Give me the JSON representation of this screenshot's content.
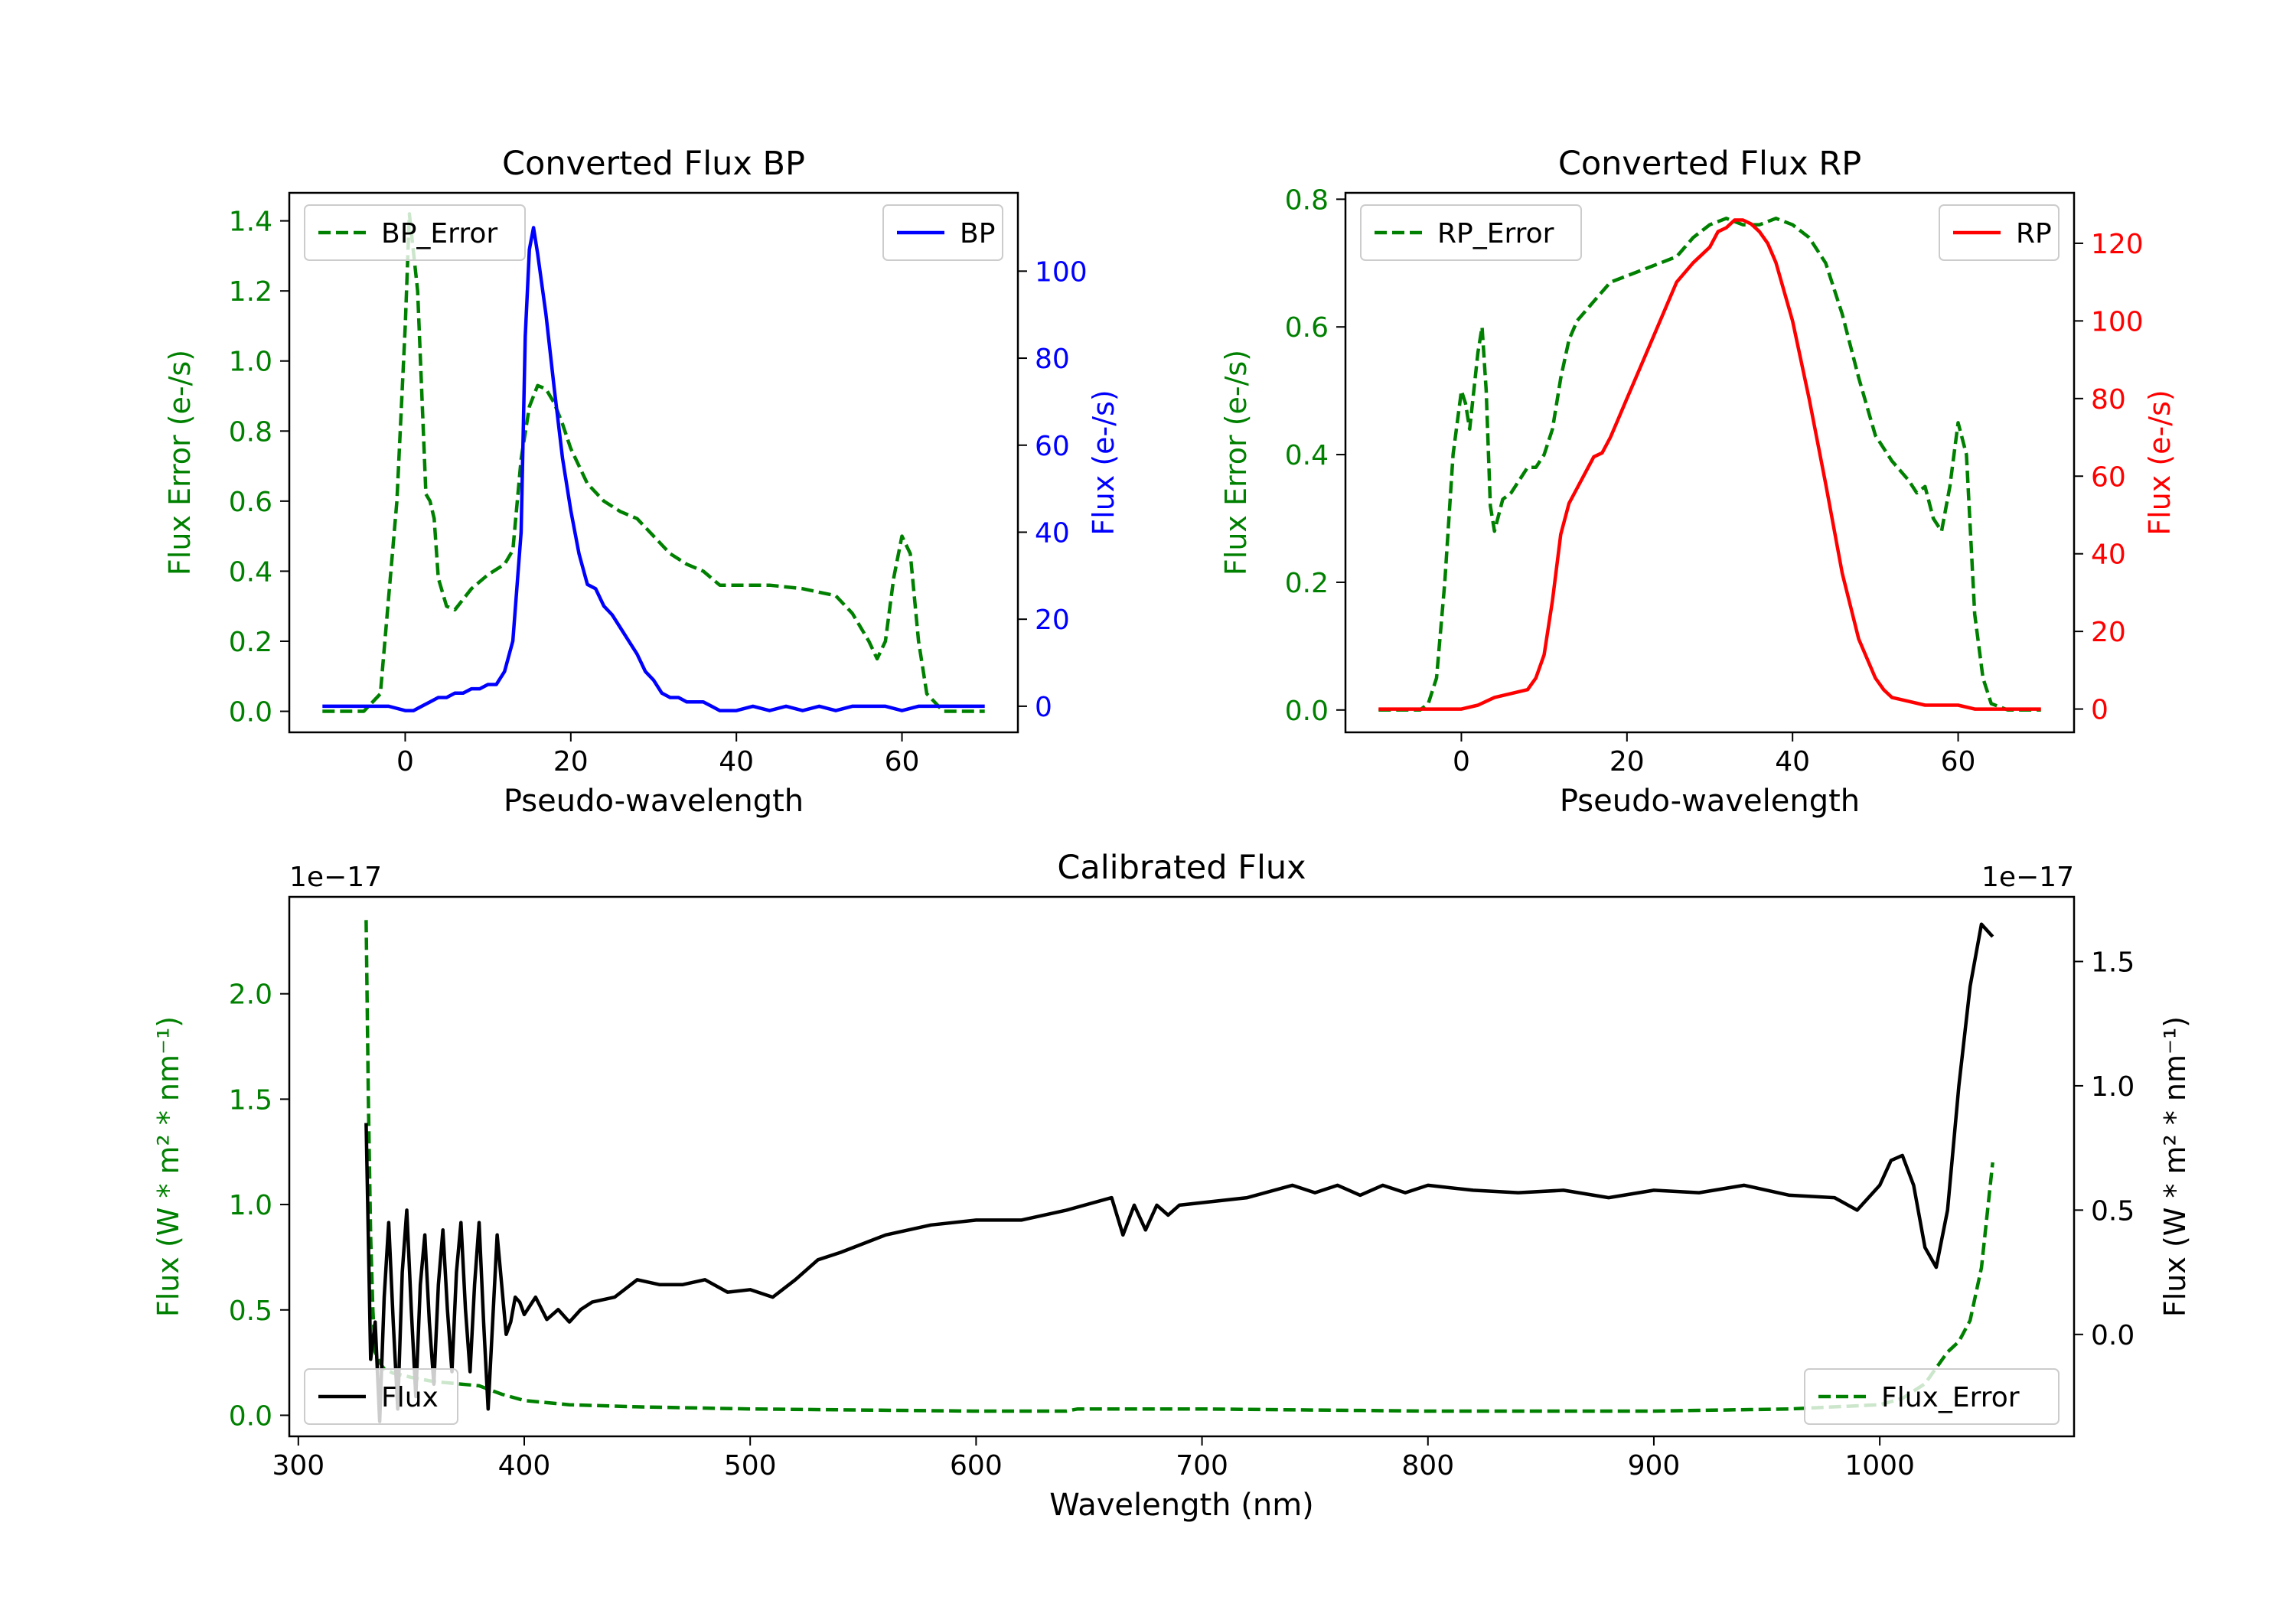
{
  "colors": {
    "green": "#008000",
    "blue": "#0000ff",
    "red": "#ff0000",
    "black": "#000000"
  },
  "chart_data": [
    {
      "id": "bp",
      "type": "line",
      "title": "Converted Flux BP",
      "xlabel": "Pseudo-wavelength",
      "ylabel_left": "Flux Error (e-/s)",
      "ylabel_right": "Flux (e-/s)",
      "xlim": [
        -14,
        74
      ],
      "ylim_left": [
        -0.06,
        1.48
      ],
      "ylim_right": [
        -6,
        118
      ],
      "xticks": [
        "0",
        "20",
        "40",
        "60"
      ],
      "yticks_left": [
        "0.0",
        "0.2",
        "0.4",
        "0.6",
        "0.8",
        "1.0",
        "1.2",
        "1.4"
      ],
      "yticks_right": [
        "0",
        "20",
        "40",
        "60",
        "80",
        "100"
      ],
      "legend_left": "BP_Error",
      "legend_right": "BP",
      "series": [
        {
          "name": "BP_Error",
          "axis": "left",
          "style": "dashed",
          "color": "#008000",
          "x": [
            -10,
            -5,
            -3,
            -1,
            0,
            0.5,
            1.5,
            2.5,
            3,
            3.5,
            4,
            5,
            6,
            8,
            10,
            12,
            13,
            14,
            15,
            16,
            17,
            18,
            19,
            20,
            22,
            24,
            26,
            28,
            30,
            32,
            34,
            36,
            38,
            40,
            44,
            48,
            52,
            54,
            56,
            57,
            58,
            59,
            60,
            61,
            62,
            63,
            65,
            67,
            70
          ],
          "y": [
            0.0,
            0.0,
            0.05,
            0.6,
            1.1,
            1.42,
            1.2,
            0.62,
            0.6,
            0.55,
            0.38,
            0.3,
            0.29,
            0.35,
            0.39,
            0.42,
            0.46,
            0.72,
            0.87,
            0.93,
            0.92,
            0.88,
            0.82,
            0.75,
            0.65,
            0.6,
            0.57,
            0.55,
            0.5,
            0.45,
            0.42,
            0.4,
            0.36,
            0.36,
            0.36,
            0.35,
            0.33,
            0.28,
            0.2,
            0.15,
            0.2,
            0.38,
            0.5,
            0.45,
            0.2,
            0.05,
            0.0,
            0.0,
            0.0
          ]
        },
        {
          "name": "BP",
          "axis": "right",
          "style": "solid",
          "color": "#0000ff",
          "x": [
            -10,
            -5,
            -2,
            0,
            1,
            2,
            3,
            4,
            5,
            6,
            7,
            8,
            9,
            10,
            11,
            12,
            13,
            14,
            14.5,
            15,
            15.5,
            16,
            17,
            18,
            19,
            20,
            21,
            22,
            23,
            24,
            25,
            26,
            27,
            28,
            29,
            30,
            31,
            32,
            33,
            34,
            35,
            36,
            37,
            38,
            40,
            42,
            44,
            46,
            48,
            50,
            52,
            54,
            56,
            58,
            60,
            62,
            65,
            70
          ],
          "y": [
            0,
            0,
            0,
            -1,
            -1,
            0,
            1,
            2,
            2,
            3,
            3,
            4,
            4,
            5,
            5,
            8,
            15,
            40,
            85,
            105,
            110,
            104,
            90,
            73,
            57,
            45,
            35,
            28,
            27,
            23,
            21,
            18,
            15,
            12,
            8,
            6,
            3,
            2,
            2,
            1,
            1,
            1,
            0,
            -1,
            -1,
            0,
            -1,
            0,
            -1,
            0,
            -1,
            0,
            0,
            0,
            -1,
            0,
            0,
            0
          ]
        }
      ]
    },
    {
      "id": "rp",
      "type": "line",
      "title": "Converted Flux RP",
      "xlabel": "Pseudo-wavelength",
      "ylabel_left": "Flux Error (e-/s)",
      "ylabel_right": "Flux (e-/s)",
      "xlim": [
        -14,
        74
      ],
      "ylim_left": [
        -0.035,
        0.81
      ],
      "ylim_right": [
        -6,
        133
      ],
      "xticks": [
        "0",
        "20",
        "40",
        "60"
      ],
      "yticks_left": [
        "0.0",
        "0.2",
        "0.4",
        "0.6",
        "0.8"
      ],
      "yticks_right": [
        "0",
        "20",
        "40",
        "60",
        "80",
        "100",
        "120"
      ],
      "legend_left": "RP_Error",
      "legend_right": "RP",
      "series": [
        {
          "name": "RP_Error",
          "axis": "left",
          "style": "dashed",
          "color": "#008000",
          "x": [
            -10,
            -5,
            -4,
            -3,
            -2,
            -1,
            0,
            0.5,
            1,
            1.5,
            2,
            2.5,
            3,
            3.5,
            4,
            5,
            6,
            8,
            9,
            10,
            11,
            12,
            13,
            14,
            16,
            18,
            20,
            22,
            24,
            26,
            28,
            30,
            32,
            34,
            36,
            38,
            40,
            42,
            44,
            46,
            48,
            50,
            52,
            54,
            55,
            56,
            57,
            58,
            59,
            60,
            61,
            62,
            63,
            64,
            66,
            70
          ],
          "y": [
            0.0,
            0.0,
            0.01,
            0.05,
            0.2,
            0.4,
            0.5,
            0.48,
            0.44,
            0.5,
            0.56,
            0.6,
            0.5,
            0.32,
            0.28,
            0.33,
            0.34,
            0.38,
            0.38,
            0.4,
            0.44,
            0.52,
            0.58,
            0.61,
            0.64,
            0.67,
            0.68,
            0.69,
            0.7,
            0.71,
            0.74,
            0.76,
            0.77,
            0.76,
            0.76,
            0.77,
            0.76,
            0.74,
            0.7,
            0.62,
            0.52,
            0.43,
            0.39,
            0.36,
            0.34,
            0.35,
            0.3,
            0.28,
            0.35,
            0.45,
            0.4,
            0.15,
            0.05,
            0.01,
            0.0,
            0.0
          ]
        },
        {
          "name": "RP",
          "axis": "right",
          "style": "solid",
          "color": "#ff0000",
          "x": [
            -10,
            -5,
            -2,
            0,
            2,
            4,
            6,
            8,
            9,
            10,
            11,
            12,
            13,
            14,
            15,
            16,
            17,
            18,
            19,
            20,
            22,
            24,
            26,
            28,
            29,
            30,
            31,
            32,
            33,
            34,
            35,
            36,
            37,
            38,
            40,
            42,
            44,
            46,
            48,
            50,
            51,
            52,
            54,
            56,
            58,
            60,
            62,
            64,
            66,
            70
          ],
          "y": [
            0,
            0,
            0,
            0,
            1,
            3,
            4,
            5,
            8,
            14,
            28,
            45,
            53,
            57,
            61,
            65,
            66,
            70,
            75,
            80,
            90,
            100,
            110,
            115,
            117,
            119,
            123,
            124,
            126,
            126,
            125,
            123,
            120,
            115,
            100,
            80,
            58,
            35,
            18,
            8,
            5,
            3,
            2,
            1,
            1,
            1,
            0,
            0,
            0,
            0
          ]
        }
      ]
    },
    {
      "id": "cal",
      "type": "line",
      "title": "Calibrated Flux",
      "xlabel": "Wavelength (nm)",
      "ylabel_left": "Flux (W * m² * nm⁻¹)",
      "ylabel_right": "Flux (W * m² * nm⁻¹)",
      "offset_left": "1e−17",
      "offset_right": "1e−17",
      "xlim": [
        296,
        1086
      ],
      "ylim_left": [
        -0.1,
        2.46
      ],
      "ylim_right": [
        -0.41,
        1.76
      ],
      "xticks": [
        "300",
        "400",
        "500",
        "600",
        "700",
        "800",
        "900",
        "1000"
      ],
      "yticks_left": [
        "0.0",
        "0.5",
        "1.0",
        "1.5",
        "2.0"
      ],
      "yticks_right": [
        "0.0",
        "0.5",
        "1.0",
        "1.5"
      ],
      "legend_left": "Flux",
      "legend_right": "Flux_Error",
      "series": [
        {
          "name": "Flux_Error",
          "axis": "left",
          "style": "dashed",
          "color": "#008000",
          "x": [
            330,
            331,
            332,
            333,
            334,
            336,
            338,
            342,
            346,
            350,
            360,
            380,
            390,
            400,
            420,
            450,
            500,
            600,
            640,
            645,
            700,
            800,
            900,
            960,
            1000,
            1010,
            1020,
            1030,
            1035,
            1040,
            1045,
            1050
          ],
          "y": [
            2.35,
            1.5,
            0.85,
            0.5,
            0.3,
            0.25,
            0.22,
            0.2,
            0.19,
            0.18,
            0.16,
            0.14,
            0.1,
            0.07,
            0.05,
            0.04,
            0.03,
            0.02,
            0.02,
            0.03,
            0.03,
            0.02,
            0.02,
            0.03,
            0.05,
            0.08,
            0.15,
            0.3,
            0.35,
            0.45,
            0.7,
            1.2
          ]
        },
        {
          "name": "Flux",
          "axis": "right",
          "style": "solid",
          "color": "#000000",
          "x": [
            330,
            332,
            334,
            336,
            338,
            340,
            342,
            344,
            346,
            348,
            350,
            352,
            354,
            356,
            358,
            360,
            362,
            364,
            366,
            368,
            370,
            372,
            374,
            376,
            378,
            380,
            382,
            384,
            386,
            388,
            390,
            392,
            394,
            396,
            398,
            400,
            405,
            410,
            415,
            420,
            425,
            430,
            440,
            450,
            460,
            470,
            480,
            490,
            500,
            510,
            520,
            530,
            540,
            560,
            580,
            600,
            620,
            640,
            660,
            665,
            670,
            675,
            680,
            685,
            690,
            700,
            720,
            740,
            750,
            760,
            770,
            780,
            790,
            800,
            820,
            840,
            860,
            880,
            900,
            920,
            940,
            960,
            980,
            990,
            1000,
            1005,
            1010,
            1015,
            1020,
            1025,
            1030,
            1035,
            1040,
            1045,
            1050
          ],
          "y": [
            0.85,
            -0.1,
            0.05,
            -0.35,
            0.15,
            0.45,
            0.05,
            -0.3,
            0.25,
            0.5,
            0.1,
            -0.25,
            0.2,
            0.4,
            0.05,
            -0.2,
            0.2,
            0.42,
            0.1,
            -0.15,
            0.25,
            0.45,
            0.1,
            -0.15,
            0.2,
            0.45,
            0.05,
            -0.3,
            0.05,
            0.4,
            0.2,
            0.0,
            0.05,
            0.15,
            0.13,
            0.08,
            0.15,
            0.06,
            0.1,
            0.05,
            0.1,
            0.13,
            0.15,
            0.22,
            0.2,
            0.2,
            0.22,
            0.17,
            0.18,
            0.15,
            0.22,
            0.3,
            0.33,
            0.4,
            0.44,
            0.46,
            0.46,
            0.5,
            0.55,
            0.4,
            0.52,
            0.42,
            0.52,
            0.48,
            0.52,
            0.53,
            0.55,
            0.6,
            0.57,
            0.6,
            0.56,
            0.6,
            0.57,
            0.6,
            0.58,
            0.57,
            0.58,
            0.55,
            0.58,
            0.57,
            0.6,
            0.56,
            0.55,
            0.5,
            0.6,
            0.7,
            0.72,
            0.6,
            0.35,
            0.27,
            0.5,
            1.0,
            1.4,
            1.65,
            1.6
          ]
        }
      ]
    }
  ]
}
